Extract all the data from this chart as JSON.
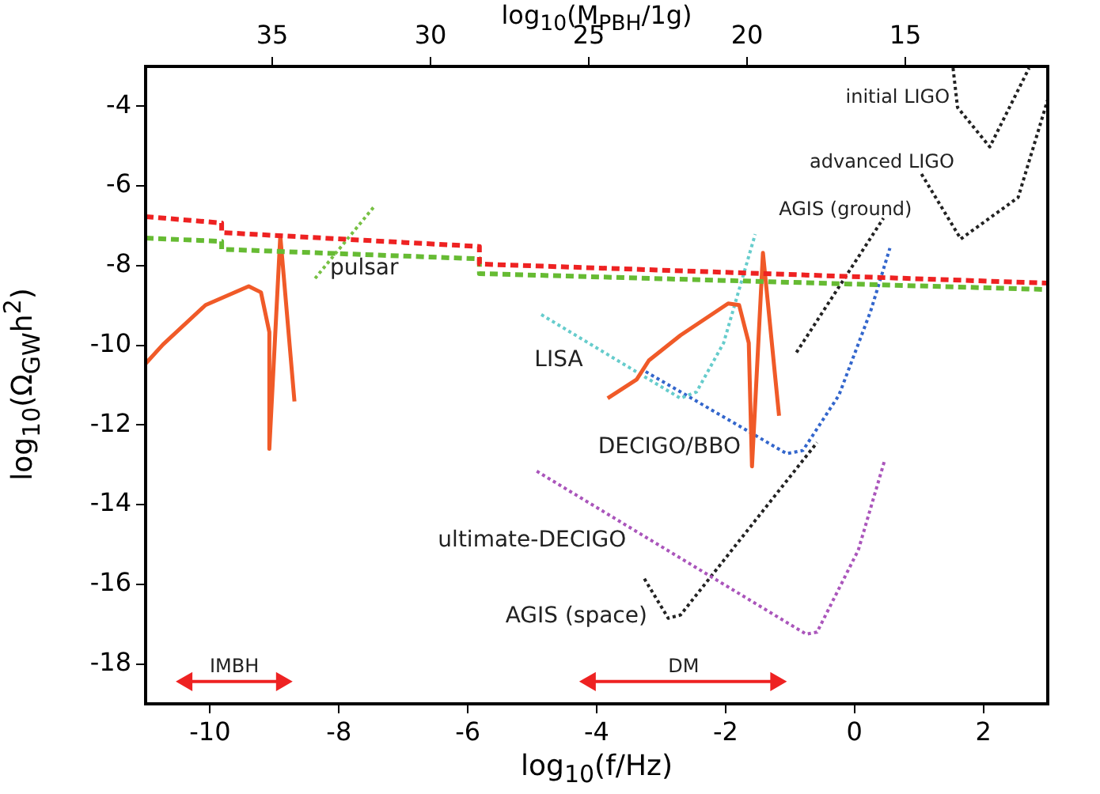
{
  "chart_data": {
    "type": "line",
    "xlabel": "log$_{10}$(f/Hz)",
    "ylabel": "log$_{10}$(Ω$_{GW}$h$^{2}$)",
    "x2label": "log$_{10}$(M$_{PBH}$/1g)",
    "xlim": [
      -11,
      3
    ],
    "xticks": [
      -10,
      -8,
      -6,
      -4,
      -2,
      0,
      2
    ],
    "ylim": [
      -19,
      -3
    ],
    "yticks": [
      -18,
      -16,
      -14,
      -12,
      -10,
      -8,
      -6,
      -4
    ],
    "x2lim": [
      39,
      10.5
    ],
    "x2ticks": [
      35,
      30,
      25,
      20,
      15
    ],
    "grid": false,
    "legend": false,
    "marker": "none",
    "series": [
      {
        "color": "#ee2222",
        "line_style": "dashed",
        "x": [
          -11,
          -9.82,
          -9.82,
          -5.82,
          -5.82,
          3
        ],
        "values": [
          -6.77,
          -6.93,
          -7.17,
          -7.52,
          -7.96,
          -8.44
        ]
      },
      {
        "color": "#66bb33",
        "line_style": "dashed",
        "x": [
          -11,
          -9.82,
          -9.82,
          -5.82,
          -5.82,
          3
        ],
        "values": [
          -7.31,
          -7.39,
          -7.59,
          -7.83,
          -8.2,
          -8.6
        ]
      },
      {
        "color": "#f05a28",
        "line_style": "solid",
        "x": [
          -11,
          -10.73,
          -10.07,
          -9.4,
          -9.21,
          -9.08,
          -9.08,
          -8.91,
          -8.69
        ],
        "values": [
          -10.46,
          -9.98,
          -8.99,
          -8.52,
          -8.67,
          -9.67,
          -12.6,
          -7.25,
          -11.41
        ]
      },
      {
        "color": "#f05a28",
        "line_style": "solid",
        "x": [
          -3.83,
          -3.38,
          -3.19,
          -2.7,
          -1.96,
          -1.79,
          -1.64,
          -1.59,
          -1.42,
          -1.17
        ],
        "values": [
          -11.33,
          -10.86,
          -10.38,
          -9.75,
          -8.95,
          -8.99,
          -9.94,
          -13.04,
          -7.68,
          -11.77
        ]
      },
      {
        "name": "pulsar",
        "color": "#77c044",
        "line_style": "dotted",
        "x": [
          -8.37,
          -7.44
        ],
        "values": [
          -8.32,
          -6.49
        ]
      },
      {
        "name": "LISA",
        "color": "#66cccc",
        "line_style": "dotted",
        "x": [
          -4.86,
          -2.7,
          -2.45,
          -2.03,
          -1.54
        ],
        "values": [
          -9.23,
          -11.33,
          -11.17,
          -9.94,
          -7.21
        ]
      },
      {
        "name": "DECIGO/BBO",
        "color": "#3366cc",
        "line_style": "dotted",
        "x": [
          -3.24,
          -1.05,
          -0.8,
          -0.24,
          0.25,
          0.55
        ],
        "values": [
          -10.66,
          -12.72,
          -12.64,
          -11.25,
          -9.15,
          -7.56
        ]
      },
      {
        "name": "AGIS (ground)",
        "color": "#222222",
        "line_style": "dotted",
        "x": [
          -0.9,
          0.45
        ],
        "values": [
          -10.18,
          -6.81
        ]
      },
      {
        "name": "advanced LIGO",
        "color": "#222222",
        "line_style": "dotted",
        "x": [
          1.04,
          1.65,
          2.54,
          3
        ],
        "values": [
          -5.7,
          -7.33,
          -6.29,
          -3.83
        ]
      },
      {
        "name": "initial LIGO",
        "color": "#222222",
        "line_style": "dotted",
        "x": [
          1.53,
          1.6,
          2.1,
          2.71
        ],
        "values": [
          -3.04,
          -4.03,
          -5.02,
          -3.04
        ]
      },
      {
        "name": "ultimate-DECIGO",
        "color": "#aa55bb",
        "line_style": "dotted",
        "x": [
          -4.93,
          -0.75,
          -0.58,
          0.06,
          0.47
        ],
        "values": [
          -13.16,
          -17.25,
          -17.2,
          -15.14,
          -12.88
        ]
      },
      {
        "name": "AGIS (space)",
        "color": "#222222",
        "line_style": "dotted",
        "x": [
          -3.26,
          -2.89,
          -2.7,
          -0.58
        ],
        "values": [
          -15.86,
          -16.85,
          -16.77,
          -12.44
        ]
      },
      {
        "name": "IMBH",
        "color": "#ee2222",
        "line_style": "solid",
        "marker": "triangle",
        "x": [
          -10.36,
          -8.89
        ],
        "values": [
          -18.44,
          -18.44
        ]
      },
      {
        "name": "DM",
        "color": "#ee2222",
        "line_style": "solid",
        "marker": "triangle",
        "x": [
          -4.1,
          -1.22
        ],
        "values": [
          -18.44,
          -18.44
        ]
      }
    ]
  }
}
